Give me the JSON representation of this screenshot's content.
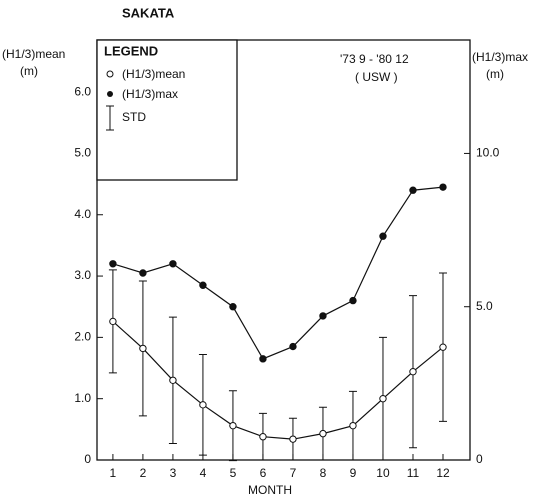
{
  "chart_data": {
    "type": "line",
    "title": "SAKATA",
    "annotation": [
      "'73 9 - '80 12",
      "( USW )"
    ],
    "x_label": "MONTH",
    "y_label": "(H1/3)mean",
    "y_label_unit": "(m)",
    "y2_label": "(H1/3)max",
    "y2_label_unit": "(m)",
    "legend_title": "LEGEND",
    "legend_std": "STD",
    "legend": "upper left",
    "x": [
      1,
      2,
      3,
      4,
      5,
      6,
      7,
      8,
      9,
      10,
      11,
      12
    ],
    "xlim": [
      0.47,
      12.9
    ],
    "xticks": [
      1,
      2,
      3,
      4,
      5,
      6,
      7,
      8,
      9,
      10,
      11,
      12
    ],
    "ylim": [
      0,
      6.85
    ],
    "yticks": [
      0,
      {
        "value": 1,
        "label": "1.0"
      },
      {
        "value": 2,
        "label": "2.0"
      },
      {
        "value": 3,
        "label": "3.0"
      },
      {
        "value": 4,
        "label": "4.0"
      },
      {
        "value": 5,
        "label": "5.0"
      },
      {
        "value": 6,
        "label": "6.0"
      }
    ],
    "y2lim": [
      0,
      13.7
    ],
    "y2ticks": [
      0,
      {
        "value": 5,
        "label": "5.0"
      },
      {
        "value": 10,
        "label": "10.0"
      }
    ],
    "series": [
      {
        "name": "(H1/3)mean",
        "color": "#111111",
        "marker": "open",
        "values": [
          2.26,
          1.82,
          1.3,
          0.9,
          0.56,
          0.38,
          0.34,
          0.43,
          0.56,
          1.0,
          1.44,
          1.84
        ],
        "errors": [
          0.84,
          1.1,
          1.03,
          0.82,
          0.57,
          0.38,
          0.34,
          0.43,
          0.56,
          1.0,
          1.24,
          1.21
        ]
      },
      {
        "name": "(H1/3)max",
        "color": "#111111",
        "marker": "filled",
        "axis": "y2",
        "values": [
          6.4,
          6.1,
          6.4,
          5.7,
          5.0,
          3.3,
          3.7,
          4.7,
          5.2,
          7.3,
          8.8,
          8.9
        ]
      }
    ]
  }
}
